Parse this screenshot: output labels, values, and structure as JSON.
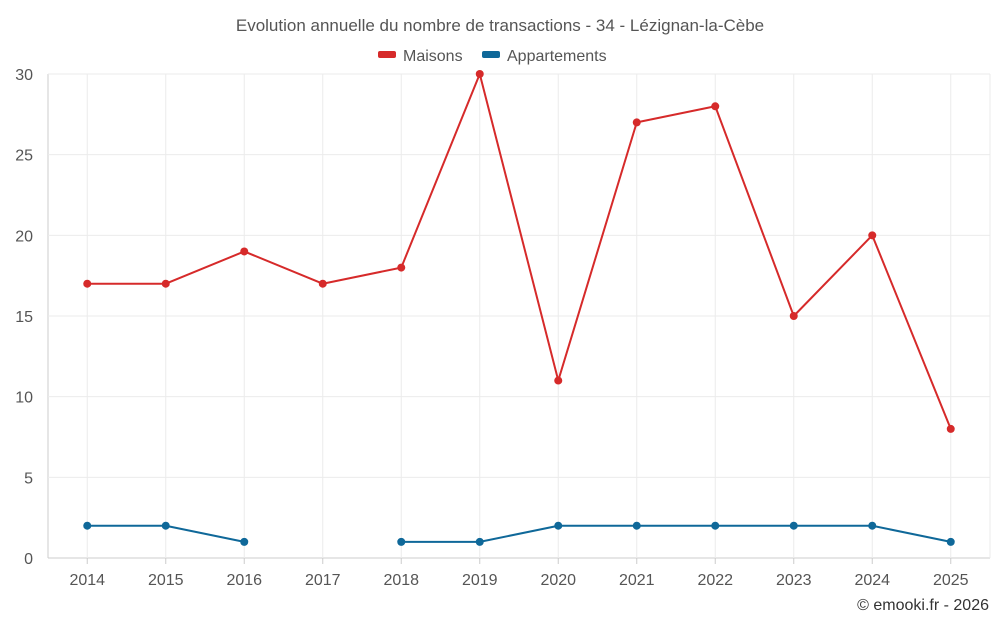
{
  "chart_data": {
    "type": "line",
    "title": "Evolution annuelle du nombre de transactions - 34 - Lézignan-la-Cèbe",
    "categories": [
      "2014",
      "2015",
      "2016",
      "2017",
      "2018",
      "2019",
      "2020",
      "2021",
      "2022",
      "2023",
      "2024",
      "2025"
    ],
    "ylim": [
      0,
      30
    ],
    "yticks": [
      0,
      5,
      10,
      15,
      20,
      25,
      30
    ],
    "grid": true,
    "legend_position": "top-center",
    "series": [
      {
        "name": "Maisons",
        "color": "#d62a2a",
        "values": [
          17,
          17,
          19,
          17,
          18,
          30,
          11,
          27,
          28,
          15,
          20,
          8
        ]
      },
      {
        "name": "Appartements",
        "color": "#0f6899",
        "values": [
          2,
          2,
          1,
          null,
          1,
          1,
          2,
          2,
          2,
          2,
          2,
          1
        ]
      }
    ],
    "credit": "© emooki.fr - 2026"
  }
}
